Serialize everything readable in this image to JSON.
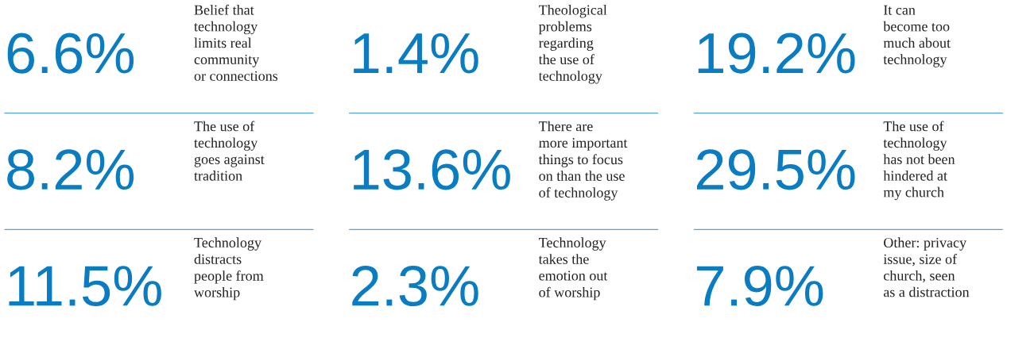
{
  "chart_data": {
    "type": "other",
    "categories": [
      "Belief that\ntechnology\nlimits real\ncommunity\nor connections",
      "Theological\nproblems\nregarding\nthe use of\ntechnology",
      "It can\nbecome too\nmuch about\ntechnology",
      "The use of\ntechnology\ngoes against\ntradition",
      "There are\nmore important\nthings to focus\non than the use\nof technology",
      "The use of\ntechnology\nhas not been\nhindered at\nmy church",
      "Technology\ndistracts\npeople from\nworship",
      "Technology\ntakes the\nemotion out\nof worship",
      "Other: privacy\nissue, size of\nchurch, seen\nas a distraction"
    ],
    "values": [
      6.6,
      1.4,
      19.2,
      8.2,
      13.6,
      29.5,
      11.5,
      2.3,
      7.9
    ],
    "value_labels": [
      "6.6%",
      "1.4%",
      "19.2%",
      "8.2%",
      "13.6%",
      "29.5%",
      "11.5%",
      "2.3%",
      "7.9%"
    ],
    "color": "#0a7cc1"
  }
}
